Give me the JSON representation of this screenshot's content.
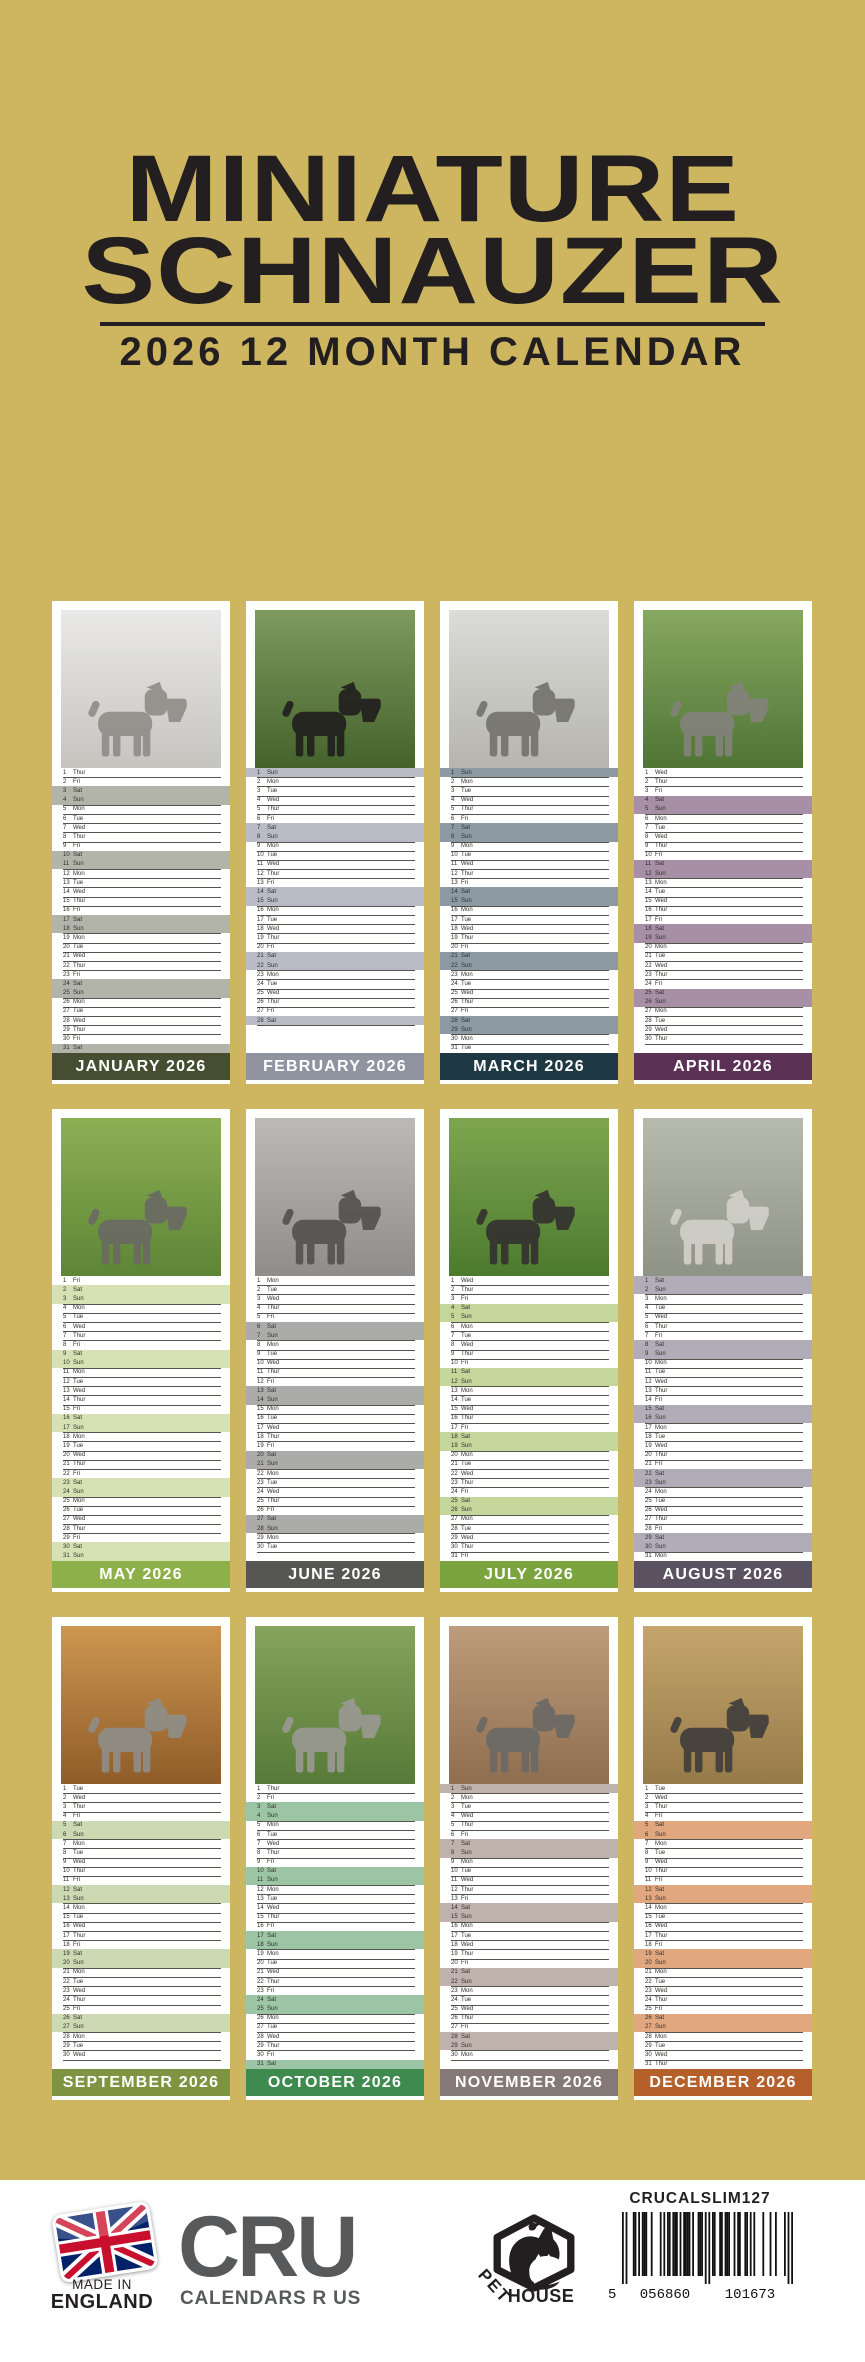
{
  "title": {
    "line1": "MINIATURE",
    "line2": "SCHNAUZER",
    "subtitle": "2026 12 MONTH CALENDAR"
  },
  "palette": {
    "background": "#ceb660",
    "ink": "#231f20",
    "panel_white": "#ffffff",
    "row_line": "#56544c",
    "day_text": "#2f2e2b",
    "label_text": "#ffffff",
    "cru_gray": "#58595b",
    "flag_blue": "#012169",
    "flag_red": "#c8102e"
  },
  "weekdays": [
    "Mon",
    "Tue",
    "Wed",
    "Thur",
    "Fri",
    "Sat",
    "Sun"
  ],
  "weekend_days": [
    "Sat",
    "Sun"
  ],
  "year": "2026",
  "months": [
    {
      "label": "JANUARY 2026",
      "days": 31,
      "start": 3,
      "bar_color": "#474d31",
      "weekend_color": "#b2b4aa",
      "photo_alt": "Salt-and-pepper Miniature Schnauzer standing in snow",
      "photo": {
        "top": "#e9e9e7",
        "bottom": "#c6c4bf",
        "dog": "#8f8e88"
      }
    },
    {
      "label": "FEBRUARY 2026",
      "days": 28,
      "start": 6,
      "bar_color": "#9094a1",
      "weekend_color": "#b9bcc6",
      "photo_alt": "Black Miniature Schnauzer lying on green grass",
      "photo": {
        "top": "#7d9b5e",
        "bottom": "#44622c",
        "dog": "#22201e"
      }
    },
    {
      "label": "MARCH 2026",
      "days": 31,
      "start": 6,
      "bar_color": "#1e3943",
      "weekend_color": "#8c99a3",
      "photo_alt": "Miniature Schnauzer portrait wearing a harness",
      "photo": {
        "top": "#dcdcd8",
        "bottom": "#b5b5ae",
        "dog": "#74736d"
      }
    },
    {
      "label": "APRIL 2026",
      "days": 30,
      "start": 2,
      "bar_color": "#5c3156",
      "weekend_color": "#a78fa6",
      "photo_alt": "Miniature Schnauzer lying on a lawn with a tennis ball",
      "photo": {
        "top": "#86a861",
        "bottom": "#4f7434",
        "dog": "#83827b"
      }
    },
    {
      "label": "MAY 2026",
      "days": 31,
      "start": 4,
      "bar_color": "#8eb04b",
      "weekend_color": "#d6e2b3",
      "photo_alt": "Miniature Schnauzer running across a meadow chasing a red ball",
      "photo": {
        "top": "#8db054",
        "bottom": "#5d8536",
        "dog": "#6b6a64"
      }
    },
    {
      "label": "JUNE 2026",
      "days": 30,
      "start": 0,
      "bar_color": "#565753",
      "weekend_color": "#ababa9",
      "photo_alt": "Miniature Schnauzer resting its head",
      "photo": {
        "top": "#bcb9b6",
        "bottom": "#8f8c89",
        "dog": "#55534f"
      }
    },
    {
      "label": "JULY 2026",
      "days": 31,
      "start": 2,
      "bar_color": "#79a43e",
      "weekend_color": "#c5d69a",
      "photo_alt": "Dark Miniature Schnauzer close-up in greenery",
      "photo": {
        "top": "#7ea650",
        "bottom": "#4c7a2e",
        "dog": "#343230"
      }
    },
    {
      "label": "AUGUST 2026",
      "days": 31,
      "start": 5,
      "bar_color": "#5a5260",
      "weekend_color": "#b2acb8",
      "photo_alt": "Light Miniature Schnauzer head portrait",
      "photo": {
        "top": "#b7bbae",
        "bottom": "#8f9386",
        "dog": "#d2d0c9"
      }
    },
    {
      "label": "SEPTEMBER 2026",
      "days": 30,
      "start": 1,
      "bar_color": "#7e9441",
      "weekend_color": "#cdd9b3",
      "photo_alt": "Miniature Schnauzer standing among autumn leaves",
      "photo": {
        "top": "#cd9650",
        "bottom": "#8f5c29",
        "dog": "#8f8e88"
      }
    },
    {
      "label": "OCTOBER 2026",
      "days": 31,
      "start": 3,
      "bar_color": "#3f8a4f",
      "weekend_color": "#9cc5a5",
      "photo_alt": "Miniature Schnauzer standing in a green garden",
      "photo": {
        "top": "#86a45c",
        "bottom": "#567a38",
        "dog": "#9a9992"
      }
    },
    {
      "label": "NOVEMBER 2026",
      "days": 30,
      "start": 6,
      "bar_color": "#847976",
      "weekend_color": "#bfb2ad",
      "photo_alt": "Miniature Schnauzer lying on a sofa",
      "photo": {
        "top": "#bd9c7b",
        "bottom": "#8f6e50",
        "dog": "#6b6965"
      }
    },
    {
      "label": "DECEMBER 2026",
      "days": 31,
      "start": 1,
      "bar_color": "#b5602b",
      "weekend_color": "#e1a77e",
      "photo_alt": "Dark Miniature Schnauzer with a red collar in a winter field",
      "photo": {
        "top": "#c5a56b",
        "bottom": "#967a49",
        "dog": "#413f3c"
      }
    }
  ],
  "footer": {
    "made_in_line1": "MADE IN",
    "made_in_line2": "ENGLAND",
    "cru_acronym": "CRU",
    "cru_name": "CALENDARS R US",
    "pet_label": "PET",
    "house_label": "HOUSE",
    "sku": "CRUCALSLIM127",
    "barcode": {
      "first": "5",
      "group1": "056860",
      "group2": "101673"
    }
  }
}
